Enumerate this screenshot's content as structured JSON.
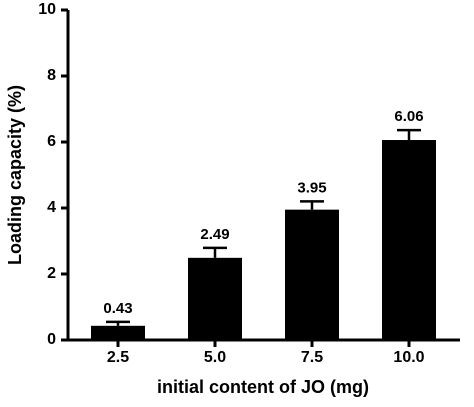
{
  "chart_data": {
    "type": "bar",
    "categories": [
      "2.5",
      "5.0",
      "7.5",
      "10.0"
    ],
    "values": [
      0.43,
      2.49,
      3.95,
      6.06
    ],
    "errors": [
      0.12,
      0.3,
      0.25,
      0.3
    ],
    "color": "#000000",
    "xlabel": "initial content of JO (mg)",
    "ylabel": "Loading capacity (%)",
    "ylim": [
      0,
      10
    ],
    "yticks": [
      0,
      2,
      4,
      6,
      8,
      10
    ],
    "grid": false
  }
}
